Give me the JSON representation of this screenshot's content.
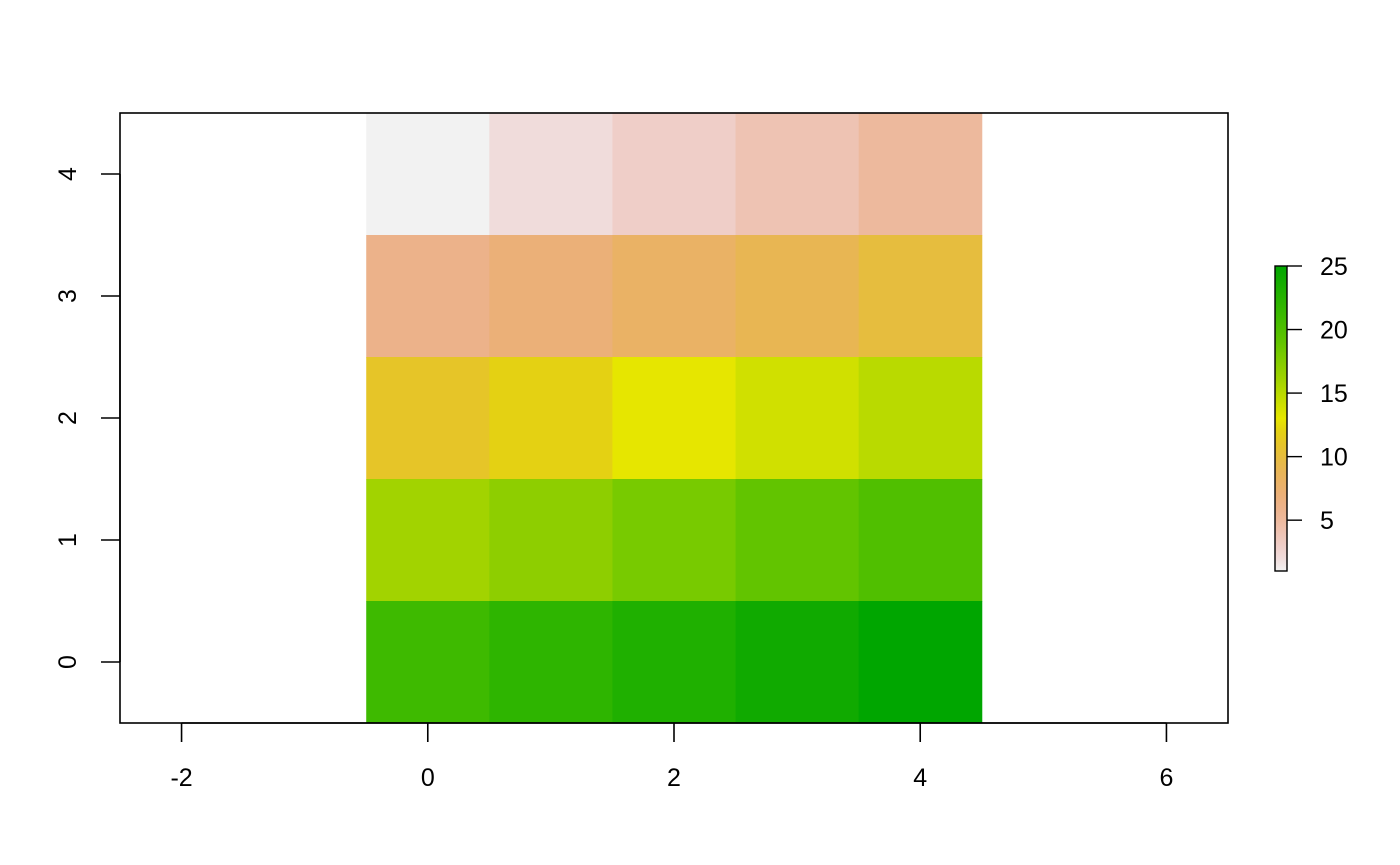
{
  "chart_data": {
    "type": "heatmap",
    "title": "",
    "xlabel": "",
    "ylabel": "",
    "xlim": [
      -2.5,
      6.5
    ],
    "ylim": [
      -0.5,
      4.5
    ],
    "x_ticks": [
      "-2",
      "0",
      "2",
      "4",
      "6"
    ],
    "x_tick_values": [
      -2,
      0,
      2,
      4,
      6
    ],
    "y_ticks": [
      "0",
      "1",
      "2",
      "3",
      "4"
    ],
    "y_tick_values": [
      0,
      1,
      2,
      3,
      4
    ],
    "x": [
      0,
      1,
      2,
      3,
      4
    ],
    "y": [
      4,
      3,
      2,
      1,
      0
    ],
    "values": [
      [
        1,
        2,
        3,
        4,
        5
      ],
      [
        6,
        7,
        8,
        9,
        10
      ],
      [
        11,
        12,
        13,
        14,
        15
      ],
      [
        16,
        17,
        18,
        19,
        20
      ],
      [
        21,
        22,
        23,
        24,
        25
      ]
    ],
    "colors": [
      [
        "#f2f2f2",
        "#f0dcdb",
        "#efcec8",
        "#eec3b3",
        "#edb99d"
      ],
      [
        "#ecb28a",
        "#ebb078",
        "#eab265",
        "#e8b653",
        "#e6bd3e"
      ],
      [
        "#e6c528",
        "#e4d113",
        "#e6e600",
        "#d0e000",
        "#b9da00"
      ],
      [
        "#a2d300",
        "#8ece00",
        "#78ca00",
        "#62c400",
        "#50bf00"
      ],
      [
        "#3eba00",
        "#2eb500",
        "#1fb000",
        "#10aa00",
        "#00a600"
      ]
    ],
    "legend": {
      "position": "right",
      "ticks": [
        "5",
        "10",
        "15",
        "20",
        "25"
      ],
      "tick_values": [
        5,
        10,
        15,
        20,
        25
      ],
      "range": [
        1,
        25
      ]
    }
  }
}
